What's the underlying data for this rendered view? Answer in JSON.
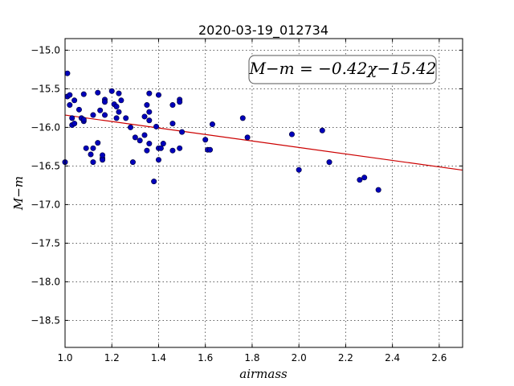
{
  "chart_data": {
    "type": "scatter",
    "title": "2020-03-19_012734",
    "xlabel": "airmass",
    "ylabel": "M−m",
    "xlim": [
      1.0,
      2.7
    ],
    "ylim": [
      -18.85,
      -14.85
    ],
    "inverted_y": false,
    "grid": true,
    "xticks": [
      1.0,
      1.2,
      1.4,
      1.6,
      1.8,
      2.0,
      2.2,
      2.4,
      2.6
    ],
    "xtick_labels": [
      "1.0",
      "1.2",
      "1.4",
      "1.6",
      "1.8",
      "2.0",
      "2.2",
      "2.4",
      "2.6"
    ],
    "yticks": [
      -15.0,
      -15.5,
      -16.0,
      -16.5,
      -17.0,
      -17.5,
      -18.0,
      -18.5
    ],
    "ytick_labels": [
      "−15.0",
      "−15.5",
      "−16.0",
      "−16.5",
      "−17.0",
      "−17.5",
      "−18.0",
      "−18.5"
    ],
    "fit": {
      "slope": -0.42,
      "intercept": -15.42,
      "color": "#cc0000"
    },
    "annotation": "M−m = −0.42χ−15.42",
    "point_color": "#0000bb",
    "points": [
      [
        1.0,
        -16.45
      ],
      [
        1.01,
        -15.3
      ],
      [
        1.01,
        -15.6
      ],
      [
        1.02,
        -15.58
      ],
      [
        1.02,
        -15.71
      ],
      [
        1.03,
        -15.88
      ],
      [
        1.03,
        -15.97
      ],
      [
        1.04,
        -15.95
      ],
      [
        1.04,
        -15.65
      ],
      [
        1.06,
        -15.77
      ],
      [
        1.07,
        -15.88
      ],
      [
        1.08,
        -15.92
      ],
      [
        1.08,
        -15.9
      ],
      [
        1.08,
        -15.57
      ],
      [
        1.09,
        -16.27
      ],
      [
        1.11,
        -16.35
      ],
      [
        1.12,
        -16.27
      ],
      [
        1.12,
        -16.45
      ],
      [
        1.12,
        -15.84
      ],
      [
        1.14,
        -16.2
      ],
      [
        1.14,
        -15.55
      ],
      [
        1.15,
        -15.78
      ],
      [
        1.16,
        -16.4
      ],
      [
        1.16,
        -16.42
      ],
      [
        1.16,
        -16.36
      ],
      [
        1.17,
        -15.64
      ],
      [
        1.17,
        -15.67
      ],
      [
        1.17,
        -15.84
      ],
      [
        1.2,
        -15.53
      ],
      [
        1.21,
        -15.7
      ],
      [
        1.22,
        -15.73
      ],
      [
        1.22,
        -15.88
      ],
      [
        1.23,
        -15.8
      ],
      [
        1.23,
        -15.56
      ],
      [
        1.24,
        -15.65
      ],
      [
        1.26,
        -15.88
      ],
      [
        1.28,
        -16.0
      ],
      [
        1.29,
        -16.45
      ],
      [
        1.3,
        -16.13
      ],
      [
        1.32,
        -16.17
      ],
      [
        1.34,
        -15.86
      ],
      [
        1.34,
        -16.1
      ],
      [
        1.35,
        -16.3
      ],
      [
        1.35,
        -15.71
      ],
      [
        1.36,
        -15.91
      ],
      [
        1.36,
        -15.8
      ],
      [
        1.36,
        -15.56
      ],
      [
        1.36,
        -16.21
      ],
      [
        1.38,
        -16.7
      ],
      [
        1.39,
        -15.99
      ],
      [
        1.4,
        -16.42
      ],
      [
        1.4,
        -15.58
      ],
      [
        1.4,
        -16.27
      ],
      [
        1.41,
        -16.27
      ],
      [
        1.42,
        -16.21
      ],
      [
        1.46,
        -15.95
      ],
      [
        1.46,
        -15.71
      ],
      [
        1.46,
        -16.3
      ],
      [
        1.49,
        -16.27
      ],
      [
        1.49,
        -15.64
      ],
      [
        1.49,
        -15.67
      ],
      [
        1.5,
        -16.06
      ],
      [
        1.6,
        -16.16
      ],
      [
        1.61,
        -16.29
      ],
      [
        1.62,
        -16.29
      ],
      [
        1.63,
        -15.96
      ],
      [
        1.76,
        -15.88
      ],
      [
        1.78,
        -16.13
      ],
      [
        1.97,
        -16.09
      ],
      [
        2.0,
        -16.55
      ],
      [
        2.1,
        -16.04
      ],
      [
        2.13,
        -16.45
      ],
      [
        2.26,
        -16.68
      ],
      [
        2.28,
        -16.65
      ],
      [
        2.34,
        -16.81
      ]
    ]
  }
}
